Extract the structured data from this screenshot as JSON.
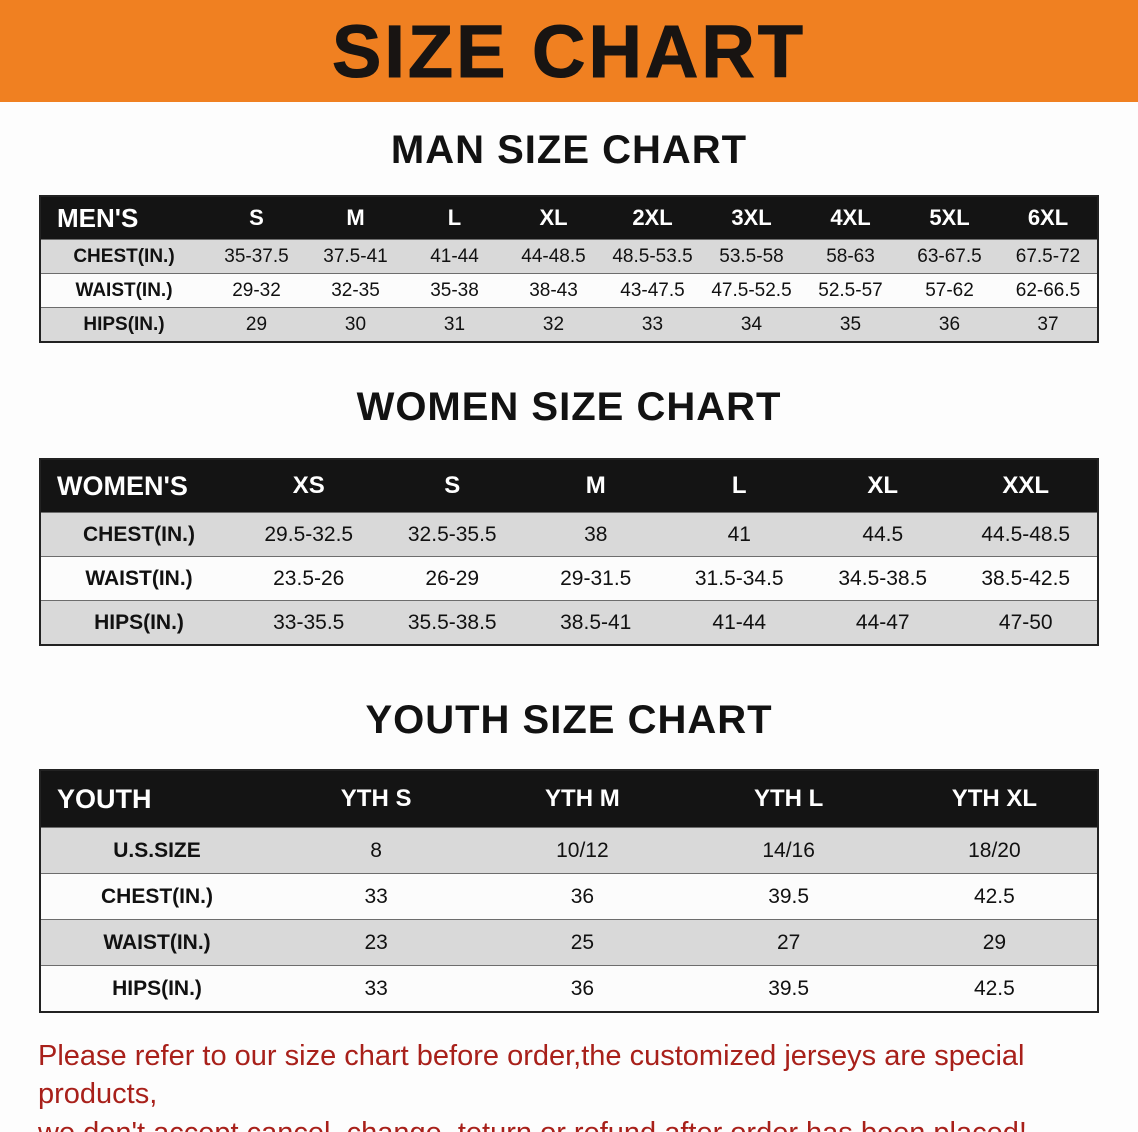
{
  "banner": {
    "title": "SIZE CHART",
    "bg_color": "#f08021",
    "text_color": "#181412"
  },
  "sections": [
    {
      "heading": "MAN SIZE CHART"
    },
    {
      "heading": "WOMEN SIZE CHART"
    },
    {
      "heading": "YOUTH SIZE CHART"
    }
  ],
  "chart_data": [
    {
      "type": "table",
      "title": "MAN SIZE CHART",
      "columns": [
        "MEN'S",
        "S",
        "M",
        "L",
        "XL",
        "2XL",
        "3XL",
        "4XL",
        "5XL",
        "6XL"
      ],
      "rows": [
        {
          "label": "CHEST(IN.)",
          "values": [
            "35-37.5",
            "37.5-41",
            "41-44",
            "44-48.5",
            "48.5-53.5",
            "53.5-58",
            "58-63",
            "63-67.5",
            "67.5-72"
          ]
        },
        {
          "label": "WAIST(IN.)",
          "values": [
            "29-32",
            "32-35",
            "35-38",
            "38-43",
            "43-47.5",
            "47.5-52.5",
            "52.5-57",
            "57-62",
            "62-66.5"
          ]
        },
        {
          "label": "HIPS(IN.)",
          "values": [
            "29",
            "30",
            "31",
            "32",
            "33",
            "34",
            "35",
            "36",
            "37"
          ]
        }
      ]
    },
    {
      "type": "table",
      "title": "WOMEN SIZE CHART",
      "columns": [
        "WOMEN'S",
        "XS",
        "S",
        "M",
        "L",
        "XL",
        "XXL"
      ],
      "rows": [
        {
          "label": "CHEST(IN.)",
          "values": [
            "29.5-32.5",
            "32.5-35.5",
            "38",
            "41",
            "44.5",
            "44.5-48.5"
          ]
        },
        {
          "label": "WAIST(IN.)",
          "values": [
            "23.5-26",
            "26-29",
            "29-31.5",
            "31.5-34.5",
            "34.5-38.5",
            "38.5-42.5"
          ]
        },
        {
          "label": "HIPS(IN.)",
          "values": [
            "33-35.5",
            "35.5-38.5",
            "38.5-41",
            "41-44",
            "44-47",
            "47-50"
          ]
        }
      ]
    },
    {
      "type": "table",
      "title": "YOUTH SIZE CHART",
      "columns": [
        "YOUTH",
        "YTH S",
        "YTH M",
        "YTH L",
        "YTH XL"
      ],
      "rows": [
        {
          "label": "U.S.SIZE",
          "values": [
            "8",
            "10/12",
            "14/16",
            "18/20"
          ]
        },
        {
          "label": "CHEST(IN.)",
          "values": [
            "33",
            "36",
            "39.5",
            "42.5"
          ]
        },
        {
          "label": "WAIST(IN.)",
          "values": [
            "23",
            "25",
            "27",
            "29"
          ]
        },
        {
          "label": "HIPS(IN.)",
          "values": [
            "33",
            "36",
            "39.5",
            "42.5"
          ]
        }
      ]
    }
  ],
  "disclaimer": {
    "line1": "Please refer to our size chart before order,the customized jerseys are special products,",
    "line2": "we don't accept cancel, change, teturn or refund after order has been placed!",
    "color": "#a8201a"
  }
}
